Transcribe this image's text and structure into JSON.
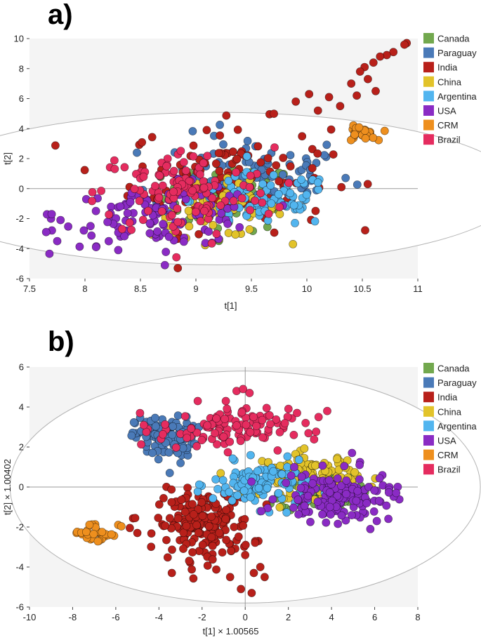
{
  "colors": {
    "Canada": "#72a84e",
    "Paraguay": "#4a7ab8",
    "India": "#b8201a",
    "China": "#e2c32a",
    "Argentina": "#52b5ef",
    "USA": "#8a2bc4",
    "CRM": "#ee8f1e",
    "Brazil": "#e52c5f"
  },
  "chart_data": [
    {
      "panel_label": "a)",
      "type": "scatter",
      "xlabel": "t[1]",
      "ylabel": "t[2]",
      "xlim": [
        7.5,
        11
      ],
      "ylim": [
        -6,
        10
      ],
      "xticks": [
        "7.5",
        "8",
        "8.5",
        "9",
        "9.5",
        "10",
        "10.5",
        "11"
      ],
      "yticks": [
        "10",
        "8",
        "6",
        "4",
        "2",
        "0",
        "-2",
        "-4",
        "-6"
      ],
      "grid": false,
      "legend_position": "right",
      "ellipse": {
        "center": [
          9.19,
          0.0
        ],
        "radius": [
          2.72,
          5.08
        ]
      },
      "legend": [
        "Canada",
        "Paraguay",
        "India",
        "China",
        "Argentina",
        "USA",
        "CRM",
        "Brazil"
      ],
      "series": [
        {
          "name": "Canada",
          "cluster": {
            "cx": 9.3,
            "cy": -0.6,
            "sx": 0.3,
            "sy": 1.1,
            "n": 70
          }
        },
        {
          "name": "Paraguay",
          "cluster": {
            "cx": 9.5,
            "cy": 1.0,
            "sx": 0.45,
            "sy": 1.3,
            "n": 90
          }
        },
        {
          "name": "India",
          "cluster": {
            "cx": 9.3,
            "cy": 0.8,
            "sx": 0.45,
            "sy": 1.8,
            "n": 120
          },
          "points": [
            [
              10.9,
              9.7
            ],
            [
              10.88,
              9.6
            ],
            [
              10.78,
              9.1
            ],
            [
              10.72,
              8.9
            ],
            [
              10.66,
              8.8
            ],
            [
              10.6,
              8.4
            ],
            [
              10.52,
              8.1
            ],
            [
              10.48,
              7.8
            ],
            [
              10.55,
              7.3
            ],
            [
              10.4,
              7.0
            ],
            [
              10.62,
              6.5
            ],
            [
              10.45,
              6.2
            ],
            [
              10.3,
              5.5
            ],
            [
              10.2,
              6.1
            ],
            [
              10.02,
              6.3
            ],
            [
              9.9,
              5.8
            ],
            [
              10.1,
              5.2
            ]
          ]
        },
        {
          "name": "China",
          "cluster": {
            "cx": 9.2,
            "cy": -1.4,
            "sx": 0.3,
            "sy": 0.9,
            "n": 60
          }
        },
        {
          "name": "Argentina",
          "cluster": {
            "cx": 9.6,
            "cy": -0.8,
            "sx": 0.32,
            "sy": 0.9,
            "n": 80
          },
          "points": [
            [
              10.1,
              0.4
            ],
            [
              9.95,
              0.6
            ],
            [
              9.85,
              -0.3
            ],
            [
              9.7,
              0.9
            ],
            [
              9.68,
              -1.0
            ]
          ]
        },
        {
          "name": "USA",
          "cluster": {
            "cx": 8.7,
            "cy": -1.8,
            "sx": 0.45,
            "sy": 1.0,
            "n": 110
          },
          "points": [
            [
              7.65,
              -2.9
            ],
            [
              7.75,
              -3.5
            ],
            [
              7.7,
              -1.7
            ],
            [
              7.78,
              -2.1
            ],
            [
              8.1,
              -3.9
            ],
            [
              8.3,
              -4.1
            ],
            [
              8.72,
              -5.1
            ],
            [
              8.05,
              -2.5
            ]
          ]
        },
        {
          "name": "CRM",
          "cluster": {
            "cx": 10.48,
            "cy": 3.65,
            "sx": 0.07,
            "sy": 0.25,
            "n": 28
          }
        },
        {
          "name": "Brazil",
          "cluster": {
            "cx": 8.9,
            "cy": -0.3,
            "sx": 0.4,
            "sy": 1.5,
            "n": 120
          }
        }
      ]
    },
    {
      "panel_label": "b)",
      "type": "scatter",
      "xlabel": "t[1] × 1.00565",
      "ylabel": "t[2] × 1.00402",
      "xlim": [
        -10,
        8
      ],
      "ylim": [
        -6,
        6
      ],
      "xticks": [
        "-10",
        "-8",
        "-6",
        "-4",
        "-2",
        "0",
        "2",
        "4",
        "6",
        "8"
      ],
      "yticks": [
        "6",
        "4",
        "2",
        "0",
        "-2",
        "-4",
        "-6"
      ],
      "grid": false,
      "legend_position": "right",
      "ellipse": {
        "center": [
          0.0,
          0.0
        ],
        "radius": [
          10.9,
          5.8
        ]
      },
      "legend": [
        "Canada",
        "Paraguay",
        "India",
        "China",
        "Argentina",
        "USA",
        "CRM",
        "Brazil"
      ],
      "series": [
        {
          "name": "Canada",
          "cluster": {
            "cx": 3.4,
            "cy": -0.3,
            "sx": 0.9,
            "sy": 0.45,
            "n": 90
          }
        },
        {
          "name": "Paraguay",
          "cluster": {
            "cx": -3.7,
            "cy": 2.5,
            "sx": 0.7,
            "sy": 0.5,
            "n": 110
          },
          "points": [
            [
              -4.3,
              1.7
            ],
            [
              -3.5,
              0.7
            ],
            [
              -3.0,
              1.2
            ]
          ]
        },
        {
          "name": "India",
          "cluster": {
            "cx": -1.9,
            "cy": -1.9,
            "sx": 1.1,
            "sy": 0.85,
            "n": 190
          },
          "points": [
            [
              1.35,
              -5.85
            ],
            [
              -0.2,
              -5.1
            ],
            [
              0.3,
              -5.3
            ],
            [
              0.7,
              -4.0
            ],
            [
              0.9,
              -4.5
            ],
            [
              0.4,
              -4.3
            ],
            [
              -0.7,
              -4.5
            ],
            [
              0.0,
              -3.4
            ],
            [
              -5.35,
              -2.05
            ],
            [
              -5.1,
              -1.55
            ],
            [
              -5.0,
              -2.3
            ]
          ]
        },
        {
          "name": "China",
          "cluster": {
            "cx": 3.0,
            "cy": 0.6,
            "sx": 1.1,
            "sy": 0.55,
            "n": 110
          }
        },
        {
          "name": "Argentina",
          "cluster": {
            "cx": 0.7,
            "cy": 0.1,
            "sx": 1.1,
            "sy": 0.55,
            "n": 110
          }
        },
        {
          "name": "USA",
          "cluster": {
            "cx": 4.2,
            "cy": -0.5,
            "sx": 1.3,
            "sy": 0.6,
            "n": 150
          },
          "points": [
            [
              7.85,
              1.15
            ],
            [
              7.0,
              -0.3
            ],
            [
              6.1,
              -1.7
            ],
            [
              5.8,
              -2.1
            ],
            [
              4.95,
              1.7
            ],
            [
              5.3,
              1.1
            ]
          ]
        },
        {
          "name": "CRM",
          "cluster": {
            "cx": -6.9,
            "cy": -2.3,
            "sx": 0.55,
            "sy": 0.28,
            "n": 32
          }
        },
        {
          "name": "Brazil",
          "cluster": {
            "cx": -1.0,
            "cy": 2.9,
            "sx": 1.5,
            "sy": 0.5,
            "n": 110
          },
          "points": [
            [
              -0.4,
              4.8
            ],
            [
              -0.1,
              4.9
            ],
            [
              0.2,
              4.7
            ],
            [
              -0.9,
              4.3
            ],
            [
              -2.2,
              4.3
            ],
            [
              2.4,
              3.7
            ],
            [
              2.8,
              3.2
            ],
            [
              3.8,
              3.8
            ],
            [
              3.4,
              3.5
            ],
            [
              -4.7,
              3.1
            ]
          ]
        }
      ]
    }
  ]
}
